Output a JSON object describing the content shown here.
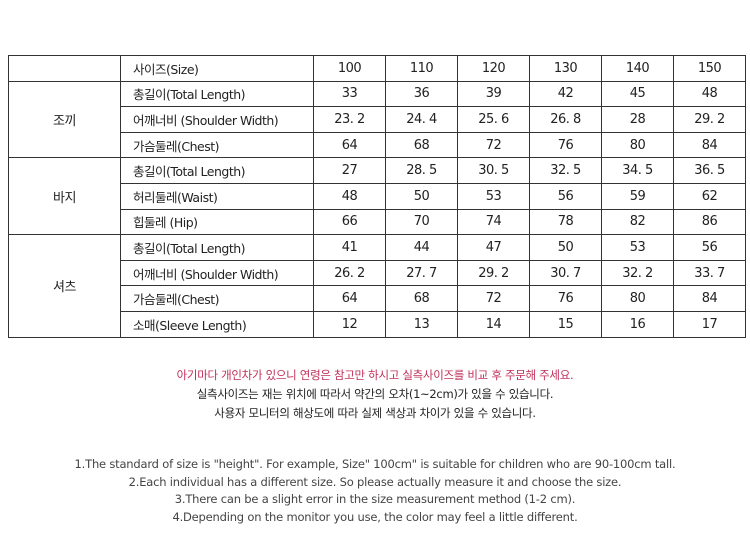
{
  "header": {
    "label": "사이즈(Size)",
    "sizes": [
      "100",
      "110",
      "120",
      "130",
      "140",
      "150"
    ]
  },
  "groups": [
    {
      "name": "조끼",
      "rows": [
        {
          "label": "총길이(Total Length)",
          "values": [
            "33",
            "36",
            "39",
            "42",
            "45",
            "48"
          ]
        },
        {
          "label": "어깨너비 (Shoulder Width)",
          "values": [
            "23. 2",
            "24. 4",
            "25. 6",
            "26. 8",
            "28",
            "29. 2"
          ]
        },
        {
          "label": "가슴둘레(Chest)",
          "values": [
            "64",
            "68",
            "72",
            "76",
            "80",
            "84"
          ]
        }
      ]
    },
    {
      "name": "바지",
      "rows": [
        {
          "label": "총길이(Total Length)",
          "values": [
            "27",
            "28. 5",
            "30. 5",
            "32. 5",
            "34. 5",
            "36. 5"
          ]
        },
        {
          "label": "허리둘레(Waist)",
          "values": [
            "48",
            "50",
            "53",
            "56",
            "59",
            "62"
          ]
        },
        {
          "label": "힙둘레 (Hip)",
          "values": [
            "66",
            "70",
            "74",
            "78",
            "82",
            "86"
          ]
        }
      ]
    },
    {
      "name": "셔츠",
      "rows": [
        {
          "label": "총길이(Total Length)",
          "values": [
            "41",
            "44",
            "47",
            "50",
            "53",
            "56"
          ]
        },
        {
          "label": "어깨너비 (Shoulder Width)",
          "values": [
            "26. 2",
            "27. 7",
            "29. 2",
            "30. 7",
            "32. 2",
            "33. 7"
          ]
        },
        {
          "label": "가슴둘레(Chest)",
          "values": [
            "64",
            "68",
            "72",
            "76",
            "80",
            "84"
          ]
        },
        {
          "label": "소매(Sleeve Length)",
          "values": [
            "12",
            "13",
            "14",
            "15",
            "16",
            "17"
          ]
        }
      ]
    }
  ],
  "notes_kr": [
    "아기마다 개인차가 있으니 연령은 참고만 하시고 실측사이즈를 비교 후 주문해 주세요.",
    "실측사이즈는 재는 위치에 따라서 약간의  오차(1~2cm)가 있을 수 있습니다.",
    "사용자 모니터의 해상도에 따라 실제 색상과 차이가 있을 수 있습니다."
  ],
  "notes_en": [
    "1.The standard of size is \"height\". For example,  Size\" 100cm\" is suitable for children who are 90-100cm tall.",
    "2.Each individual has a different size. So please actually measure it and choose the size.",
    "3.There can be a slight error in the size measurement method (1-2 cm).",
    "4.Depending on the monitor you use, the color may feel a little different."
  ],
  "colors": {
    "highlight": "#c0305a",
    "border": "#333333"
  }
}
